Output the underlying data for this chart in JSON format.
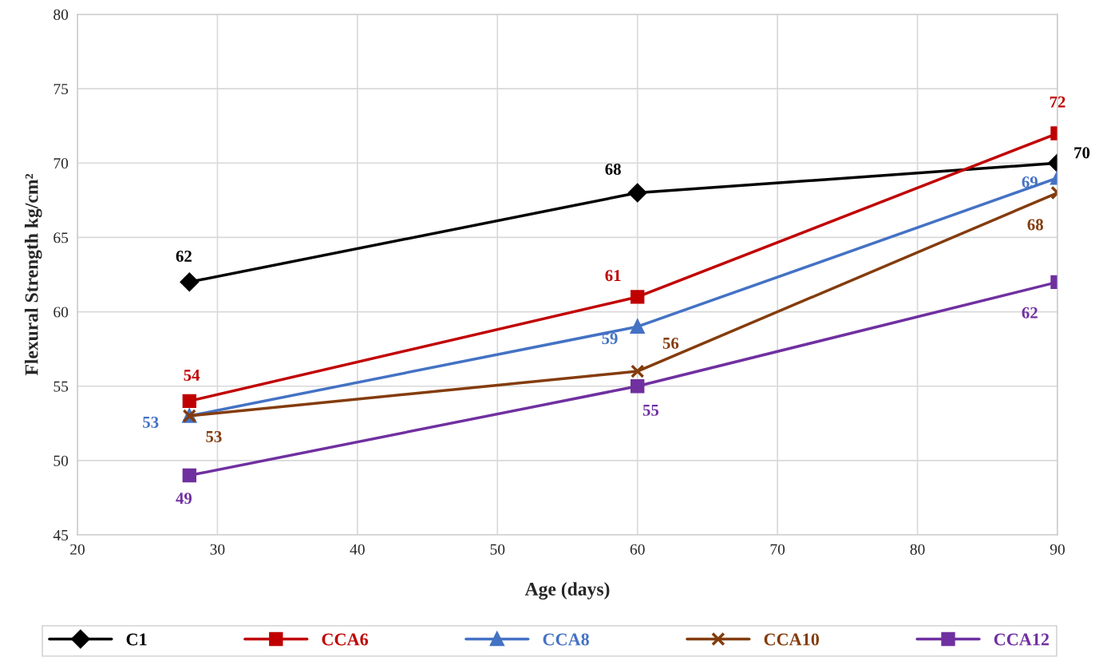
{
  "chart_data": {
    "type": "line",
    "xlabel": "Age (days)",
    "ylabel": "Flexural Strength kg/cm²",
    "x": [
      28,
      60,
      90
    ],
    "series": [
      {
        "name": "C1",
        "color": "#000000",
        "marker": "diamond",
        "values": [
          62,
          68,
          70
        ]
      },
      {
        "name": "CCA6",
        "color": "#c00000",
        "marker": "square",
        "values": [
          54,
          61,
          72
        ]
      },
      {
        "name": "CCA8",
        "color": "#4472c4",
        "marker": "triangle",
        "values": [
          53,
          59,
          69
        ]
      },
      {
        "name": "CCA10",
        "color": "#843c0c",
        "marker": "cross",
        "values": [
          53,
          56,
          68
        ]
      },
      {
        "name": "CCA12",
        "color": "#7030a0",
        "marker": "square",
        "values": [
          49,
          55,
          62
        ]
      }
    ],
    "xlim": [
      20,
      90
    ],
    "xticks": [
      20,
      30,
      40,
      50,
      60,
      70,
      80,
      90
    ],
    "ylim": [
      45,
      80
    ],
    "yticks": [
      45,
      50,
      55,
      60,
      65,
      70,
      75,
      80
    ],
    "grid": true,
    "legend": "bottom",
    "data_labels": true,
    "line_style": "solid"
  }
}
